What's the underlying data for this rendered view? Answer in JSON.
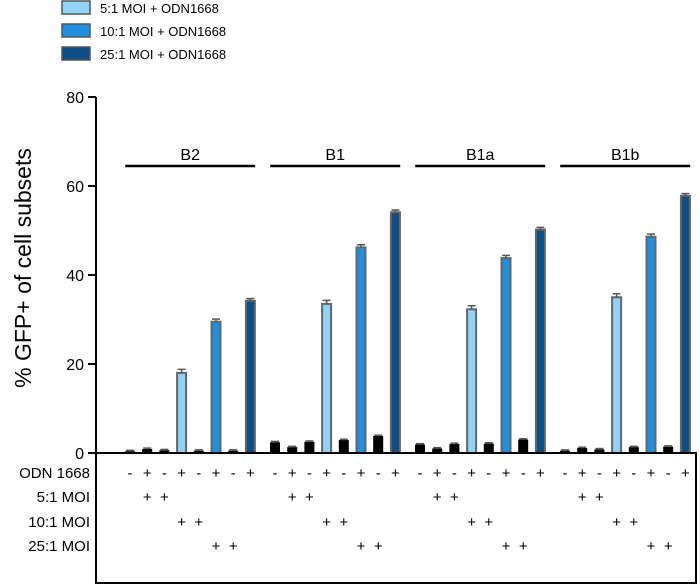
{
  "chart_data": {
    "type": "bar",
    "ylabel": "% GFP+ of cell subsets",
    "ylim": [
      0,
      80
    ],
    "yticks": [
      0,
      20,
      40,
      60,
      80
    ],
    "grid": false,
    "legend_position": "top-left",
    "colors": {
      "none": "#000000",
      "moi5": "#8fd3f7",
      "moi10": "#1f8fe0",
      "moi25": "#0b4f86"
    },
    "series": [
      {
        "name": "5:1 MOI + ODN1668",
        "key": "moi5"
      },
      {
        "name": "10:1 MOI + ODN1668",
        "key": "moi10"
      },
      {
        "name": "25:1 MOI + ODN1668",
        "key": "moi25"
      }
    ],
    "groups": [
      {
        "name": "B2",
        "bars": [
          {
            "key": "none",
            "value": 0.3
          },
          {
            "key": "none",
            "value": 0.8
          },
          {
            "key": "none",
            "value": 0.5
          },
          {
            "key": "moi5",
            "value": 18.0
          },
          {
            "key": "none",
            "value": 0.4
          },
          {
            "key": "moi10",
            "value": 29.5
          },
          {
            "key": "none",
            "value": 0.4
          },
          {
            "key": "moi25",
            "value": 34.2
          }
        ]
      },
      {
        "name": "B1",
        "bars": [
          {
            "key": "none",
            "value": 2.3
          },
          {
            "key": "none",
            "value": 1.2
          },
          {
            "key": "none",
            "value": 2.4
          },
          {
            "key": "moi5",
            "value": 33.5
          },
          {
            "key": "none",
            "value": 2.8
          },
          {
            "key": "moi10",
            "value": 46.2
          },
          {
            "key": "none",
            "value": 3.7
          },
          {
            "key": "moi25",
            "value": 54.1
          }
        ]
      },
      {
        "name": "B1a",
        "bars": [
          {
            "key": "none",
            "value": 1.8
          },
          {
            "key": "none",
            "value": 0.9
          },
          {
            "key": "none",
            "value": 1.9
          },
          {
            "key": "moi5",
            "value": 32.3
          },
          {
            "key": "none",
            "value": 2.0
          },
          {
            "key": "moi10",
            "value": 43.8
          },
          {
            "key": "none",
            "value": 2.9
          },
          {
            "key": "moi25",
            "value": 50.2
          }
        ]
      },
      {
        "name": "B1b",
        "bars": [
          {
            "key": "none",
            "value": 0.4
          },
          {
            "key": "none",
            "value": 1.0
          },
          {
            "key": "none",
            "value": 0.7
          },
          {
            "key": "moi5",
            "value": 35.0
          },
          {
            "key": "none",
            "value": 1.2
          },
          {
            "key": "moi10",
            "value": 48.6
          },
          {
            "key": "none",
            "value": 1.3
          },
          {
            "key": "moi25",
            "value": 57.8
          }
        ]
      }
    ],
    "errors": {
      "none": 0.3,
      "moi5": 0.8,
      "moi10": 0.6,
      "moi25": 0.5
    },
    "condition_table": {
      "rows": [
        {
          "label": "ODN 1668",
          "marks": [
            "-",
            "+",
            "-",
            "+",
            "-",
            "+",
            "-",
            "+"
          ]
        },
        {
          "label": "5:1 MOI",
          "marks": [
            "",
            "+",
            "+",
            "",
            "",
            "",
            "",
            ""
          ]
        },
        {
          "label": "10:1 MOI",
          "marks": [
            "",
            "",
            "",
            "+",
            "+",
            "",
            "",
            ""
          ]
        },
        {
          "label": "25:1 MOI",
          "marks": [
            "",
            "",
            "",
            "",
            "",
            "+",
            "+",
            ""
          ]
        }
      ]
    }
  }
}
